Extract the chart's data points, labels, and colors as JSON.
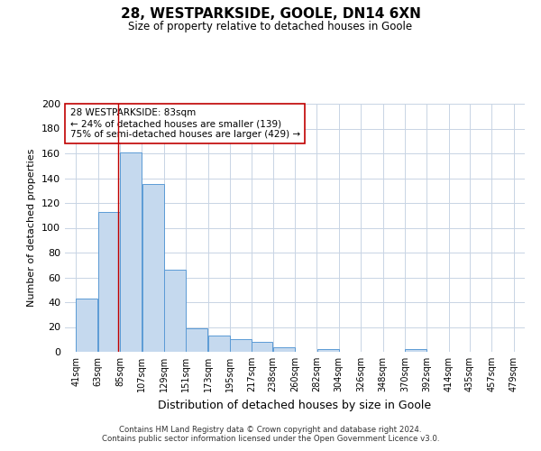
{
  "title": "28, WESTPARKSIDE, GOOLE, DN14 6XN",
  "subtitle": "Size of property relative to detached houses in Goole",
  "xlabel": "Distribution of detached houses by size in Goole",
  "ylabel": "Number of detached properties",
  "bar_left_edges": [
    41,
    63,
    85,
    107,
    129,
    151,
    173,
    195,
    217,
    238,
    260,
    282,
    304,
    326,
    348,
    370,
    392,
    414,
    435,
    457
  ],
  "bar_widths": [
    22,
    22,
    22,
    22,
    22,
    22,
    22,
    22,
    21,
    22,
    22,
    22,
    22,
    22,
    22,
    22,
    22,
    21,
    22,
    22
  ],
  "bar_heights": [
    43,
    113,
    161,
    135,
    66,
    19,
    13,
    10,
    8,
    4,
    0,
    2,
    0,
    0,
    0,
    2,
    0,
    0,
    0,
    0
  ],
  "bar_color": "#c5d9ee",
  "bar_edge_color": "#5b9bd5",
  "x_tick_labels": [
    "41sqm",
    "63sqm",
    "85sqm",
    "107sqm",
    "129sqm",
    "151sqm",
    "173sqm",
    "195sqm",
    "217sqm",
    "238sqm",
    "260sqm",
    "282sqm",
    "304sqm",
    "326sqm",
    "348sqm",
    "370sqm",
    "392sqm",
    "414sqm",
    "435sqm",
    "457sqm",
    "479sqm"
  ],
  "x_tick_positions": [
    41,
    63,
    85,
    107,
    129,
    151,
    173,
    195,
    217,
    238,
    260,
    282,
    304,
    326,
    348,
    370,
    392,
    414,
    435,
    457,
    479
  ],
  "ylim": [
    0,
    200
  ],
  "yticks": [
    0,
    20,
    40,
    60,
    80,
    100,
    120,
    140,
    160,
    180,
    200
  ],
  "xlim": [
    30,
    490
  ],
  "marker_x": 83,
  "marker_color": "#c00000",
  "annotation_title": "28 WESTPARKSIDE: 83sqm",
  "annotation_line1": "← 24% of detached houses are smaller (139)",
  "annotation_line2": "75% of semi-detached houses are larger (429) →",
  "annotation_box_color": "#ffffff",
  "annotation_box_edge_color": "#c00000",
  "footer_line1": "Contains HM Land Registry data © Crown copyright and database right 2024.",
  "footer_line2": "Contains public sector information licensed under the Open Government Licence v3.0.",
  "background_color": "#ffffff",
  "grid_color": "#c8d4e4"
}
